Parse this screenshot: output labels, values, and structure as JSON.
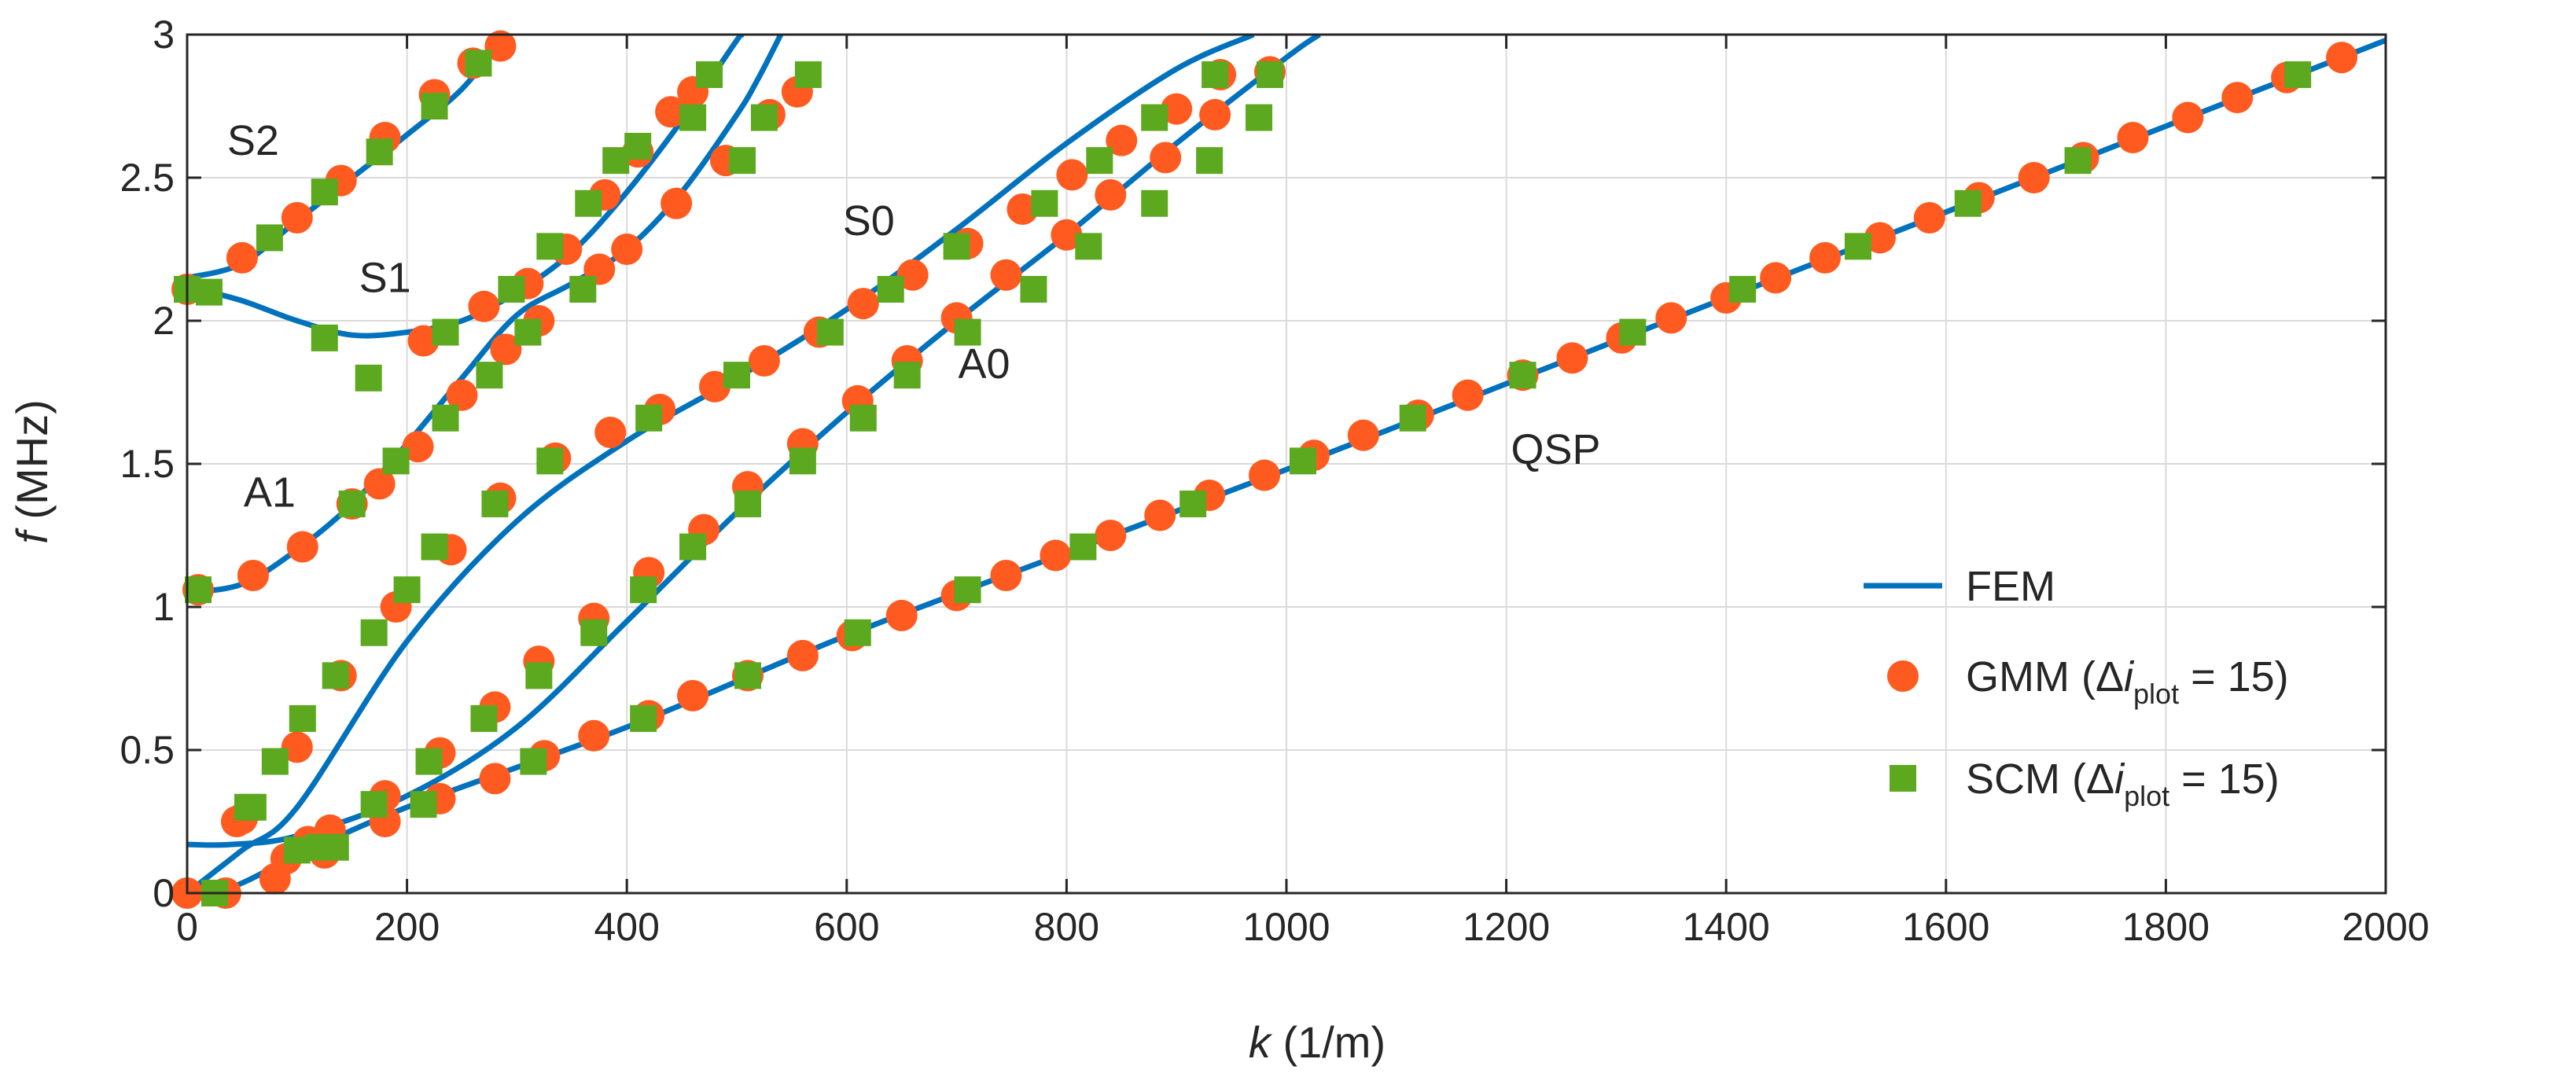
{
  "chart_data": {
    "type": "line",
    "title": "",
    "xlabel": {
      "var": "k",
      "unit": " (1/m)"
    },
    "ylabel": {
      "var": "f",
      "unit": " (MHz)"
    },
    "xlim": [
      0,
      2000
    ],
    "ylim": [
      0,
      3
    ],
    "grid": true,
    "xticks": [
      0,
      200,
      400,
      600,
      800,
      1000,
      1200,
      1400,
      1600,
      1800,
      2000
    ],
    "yticks": [
      0,
      0.5,
      1,
      1.5,
      2,
      2.5,
      3
    ],
    "xtick_labels": [
      "0",
      "200",
      "400",
      "600",
      "800",
      "1000",
      "1200",
      "1400",
      "1600",
      "1800",
      "2000"
    ],
    "ytick_labels": [
      "0",
      "0.5",
      "1",
      "1.5",
      "2",
      "2.5",
      "3"
    ],
    "colors": {
      "fem": "#0072BD",
      "gmm": "#FF5A1F",
      "scm": "#5CA81E",
      "grid": "#DADADA",
      "axis": "#262626"
    },
    "legend": {
      "position": "bottom-right",
      "entries": [
        {
          "key": "fem",
          "label": "FEM"
        },
        {
          "key": "gmm",
          "pre": "GMM (Δ",
          "var": "i",
          "sub": "plot",
          "post": " = 15)"
        },
        {
          "key": "scm",
          "pre": "SCM (Δ",
          "var": "i",
          "sub": "plot",
          "post": " = 15)"
        }
      ]
    },
    "annotations": [
      {
        "text": "S2",
        "x": 60,
        "y": 2.58
      },
      {
        "text": "S1",
        "x": 180,
        "y": 2.1
      },
      {
        "text": "S0",
        "x": 620,
        "y": 2.3
      },
      {
        "text": "A1",
        "x": 75,
        "y": 1.35
      },
      {
        "text": "A0",
        "x": 725,
        "y": 1.8
      },
      {
        "text": "QSP",
        "x": 1245,
        "y": 1.5
      }
    ],
    "series": [
      {
        "name": "QSP",
        "fem": [
          [
            0,
            0
          ],
          [
            40,
            0.02
          ],
          [
            100,
            0.13
          ],
          [
            200,
            0.3
          ],
          [
            400,
            0.58
          ],
          [
            600,
            0.9
          ],
          [
            800,
            1.19
          ],
          [
            1000,
            1.48
          ],
          [
            1200,
            1.78
          ],
          [
            1400,
            2.08
          ],
          [
            1600,
            2.38
          ],
          [
            1800,
            2.68
          ],
          [
            2000,
            2.98
          ]
        ],
        "gmm": [
          [
            0,
            0
          ],
          [
            35,
            0
          ],
          [
            80,
            0.05
          ],
          [
            90,
            0.12
          ],
          [
            125,
            0.14
          ],
          [
            180,
            0.25
          ],
          [
            230,
            0.33
          ],
          [
            280,
            0.4
          ],
          [
            325,
            0.48
          ],
          [
            370,
            0.55
          ],
          [
            420,
            0.62
          ],
          [
            460,
            0.69
          ],
          [
            510,
            0.76
          ],
          [
            560,
            0.83
          ],
          [
            605,
            0.9
          ],
          [
            650,
            0.97
          ],
          [
            700,
            1.04
          ],
          [
            745,
            1.11
          ],
          [
            790,
            1.18
          ],
          [
            840,
            1.25
          ],
          [
            885,
            1.32
          ],
          [
            930,
            1.39
          ],
          [
            980,
            1.46
          ],
          [
            1025,
            1.53
          ],
          [
            1070,
            1.6
          ],
          [
            1120,
            1.67
          ],
          [
            1165,
            1.74
          ],
          [
            1215,
            1.81
          ],
          [
            1260,
            1.87
          ],
          [
            1305,
            1.94
          ],
          [
            1350,
            2.01
          ],
          [
            1400,
            2.08
          ],
          [
            1445,
            2.15
          ],
          [
            1490,
            2.22
          ],
          [
            1540,
            2.29
          ],
          [
            1585,
            2.36
          ],
          [
            1630,
            2.43
          ],
          [
            1680,
            2.5
          ],
          [
            1725,
            2.57
          ],
          [
            1770,
            2.64
          ],
          [
            1820,
            2.71
          ],
          [
            1865,
            2.78
          ],
          [
            1910,
            2.85
          ],
          [
            1960,
            2.92
          ]
        ],
        "scm": [
          [
            25,
            0
          ],
          [
            100,
            0.15
          ],
          [
            135,
            0.16
          ],
          [
            215,
            0.31
          ],
          [
            315,
            0.46
          ],
          [
            415,
            0.61
          ],
          [
            510,
            0.76
          ],
          [
            610,
            0.91
          ],
          [
            710,
            1.06
          ],
          [
            815,
            1.21
          ],
          [
            915,
            1.36
          ],
          [
            1015,
            1.51
          ],
          [
            1115,
            1.66
          ],
          [
            1215,
            1.81
          ],
          [
            1315,
            1.96
          ],
          [
            1415,
            2.11
          ],
          [
            1520,
            2.26
          ],
          [
            1620,
            2.41
          ],
          [
            1720,
            2.56
          ],
          [
            1920,
            2.86
          ]
        ]
      },
      {
        "name": "A0",
        "fem": [
          [
            0,
            0.17
          ],
          [
            40,
            0.17
          ],
          [
            100,
            0.2
          ],
          [
            200,
            0.34
          ],
          [
            300,
            0.58
          ],
          [
            400,
            0.95
          ],
          [
            500,
            1.33
          ],
          [
            600,
            1.68
          ],
          [
            700,
            2.0
          ],
          [
            800,
            2.3
          ],
          [
            900,
            2.62
          ],
          [
            1000,
            2.92
          ],
          [
            1030,
            3.0
          ]
        ],
        "gmm": [
          [
            45,
            0.25
          ],
          [
            110,
            0.18
          ],
          [
            130,
            0.22
          ],
          [
            180,
            0.34
          ],
          [
            230,
            0.49
          ],
          [
            280,
            0.65
          ],
          [
            320,
            0.81
          ],
          [
            370,
            0.96
          ],
          [
            420,
            1.12
          ],
          [
            470,
            1.27
          ],
          [
            510,
            1.42
          ],
          [
            560,
            1.57
          ],
          [
            610,
            1.72
          ],
          [
            655,
            1.86
          ],
          [
            700,
            2.01
          ],
          [
            745,
            2.16
          ],
          [
            800,
            2.3
          ],
          [
            840,
            2.44
          ],
          [
            890,
            2.57
          ],
          [
            935,
            2.72
          ],
          [
            985,
            2.87
          ]
        ],
        "scm": [
          [
            55,
            0.3
          ],
          [
            120,
            0.16
          ],
          [
            170,
            0.31
          ],
          [
            220,
            0.46
          ],
          [
            270,
            0.61
          ],
          [
            320,
            0.76
          ],
          [
            370,
            0.91
          ],
          [
            415,
            1.06
          ],
          [
            460,
            1.21
          ],
          [
            510,
            1.36
          ],
          [
            560,
            1.51
          ],
          [
            615,
            1.66
          ],
          [
            655,
            1.81
          ],
          [
            710,
            1.96
          ],
          [
            770,
            2.11
          ],
          [
            820,
            2.26
          ],
          [
            880,
            2.41
          ],
          [
            930,
            2.56
          ],
          [
            975,
            2.71
          ],
          [
            985,
            2.86
          ]
        ]
      },
      {
        "name": "S0",
        "fem": [
          [
            0,
            0
          ],
          [
            50,
            0.15
          ],
          [
            100,
            0.3
          ],
          [
            200,
            0.88
          ],
          [
            300,
            1.3
          ],
          [
            400,
            1.58
          ],
          [
            500,
            1.8
          ],
          [
            600,
            2.04
          ],
          [
            700,
            2.32
          ],
          [
            800,
            2.62
          ],
          [
            900,
            2.88
          ],
          [
            970,
            3.0
          ]
        ],
        "gmm": [
          [
            50,
            0.26
          ],
          [
            100,
            0.51
          ],
          [
            140,
            0.76
          ],
          [
            190,
            1.0
          ],
          [
            240,
            1.2
          ],
          [
            285,
            1.38
          ],
          [
            335,
            1.52
          ],
          [
            385,
            1.61
          ],
          [
            430,
            1.69
          ],
          [
            480,
            1.77
          ],
          [
            525,
            1.86
          ],
          [
            575,
            1.96
          ],
          [
            615,
            2.06
          ],
          [
            660,
            2.16
          ],
          [
            710,
            2.27
          ],
          [
            760,
            2.39
          ],
          [
            805,
            2.51
          ],
          [
            850,
            2.63
          ],
          [
            900,
            2.74
          ],
          [
            940,
            2.86
          ]
        ],
        "scm": [
          [
            60,
            0.3
          ],
          [
            80,
            0.46
          ],
          [
            105,
            0.61
          ],
          [
            135,
            0.76
          ],
          [
            170,
            0.91
          ],
          [
            200,
            1.06
          ],
          [
            225,
            1.21
          ],
          [
            280,
            1.36
          ],
          [
            330,
            1.51
          ],
          [
            420,
            1.66
          ],
          [
            500,
            1.81
          ],
          [
            585,
            1.96
          ],
          [
            640,
            2.11
          ],
          [
            700,
            2.26
          ],
          [
            780,
            2.41
          ],
          [
            830,
            2.56
          ],
          [
            880,
            2.71
          ],
          [
            935,
            2.86
          ]
        ]
      },
      {
        "name": "A1",
        "fem": [
          [
            0,
            1.05
          ],
          [
            50,
            1.08
          ],
          [
            100,
            1.2
          ],
          [
            150,
            1.36
          ],
          [
            200,
            1.57
          ],
          [
            250,
            1.8
          ],
          [
            300,
            2.02
          ],
          [
            350,
            2.13
          ],
          [
            400,
            2.25
          ],
          [
            450,
            2.45
          ],
          [
            500,
            2.72
          ],
          [
            520,
            2.85
          ],
          [
            540,
            3.0
          ]
        ],
        "gmm": [
          [
            10,
            1.06
          ],
          [
            60,
            1.11
          ],
          [
            105,
            1.21
          ],
          [
            150,
            1.36
          ],
          [
            175,
            1.43
          ],
          [
            210,
            1.56
          ],
          [
            250,
            1.74
          ],
          [
            290,
            1.9
          ],
          [
            320,
            2.0
          ],
          [
            375,
            2.18
          ],
          [
            400,
            2.25
          ],
          [
            445,
            2.41
          ],
          [
            490,
            2.56
          ],
          [
            530,
            2.72
          ],
          [
            555,
            2.8
          ]
        ],
        "scm": [
          [
            10,
            1.06
          ],
          [
            150,
            1.36
          ],
          [
            190,
            1.51
          ],
          [
            235,
            1.66
          ],
          [
            275,
            1.81
          ],
          [
            310,
            1.96
          ],
          [
            360,
            2.11
          ],
          [
            505,
            2.56
          ],
          [
            525,
            2.71
          ],
          [
            565,
            2.86
          ]
        ]
      },
      {
        "name": "S1",
        "fem": [
          [
            0,
            2.12
          ],
          [
            50,
            2.07
          ],
          [
            100,
            2.0
          ],
          [
            150,
            1.95
          ],
          [
            200,
            1.96
          ],
          [
            250,
            2.0
          ],
          [
            300,
            2.1
          ],
          [
            350,
            2.24
          ],
          [
            400,
            2.45
          ],
          [
            450,
            2.7
          ],
          [
            500,
            2.98
          ],
          [
            505,
            3.0
          ]
        ],
        "gmm": [
          [
            215,
            1.93
          ],
          [
            270,
            2.05
          ],
          [
            310,
            2.13
          ],
          [
            345,
            2.25
          ],
          [
            380,
            2.44
          ],
          [
            410,
            2.59
          ],
          [
            440,
            2.73
          ],
          [
            460,
            2.8
          ]
        ],
        "scm": [
          [
            0,
            2.11
          ],
          [
            20,
            2.1
          ],
          [
            125,
            1.94
          ],
          [
            165,
            1.8
          ],
          [
            235,
            1.96
          ],
          [
            295,
            2.11
          ],
          [
            330,
            2.26
          ],
          [
            365,
            2.41
          ],
          [
            390,
            2.56
          ],
          [
            410,
            2.61
          ],
          [
            460,
            2.71
          ],
          [
            475,
            2.86
          ]
        ]
      },
      {
        "name": "S2",
        "fem": [
          [
            0,
            2.15
          ],
          [
            50,
            2.2
          ],
          [
            100,
            2.35
          ],
          [
            150,
            2.5
          ],
          [
            200,
            2.65
          ],
          [
            250,
            2.81
          ],
          [
            285,
            2.98
          ],
          [
            290,
            3.0
          ]
        ],
        "gmm": [
          [
            0,
            2.11
          ],
          [
            50,
            2.22
          ],
          [
            100,
            2.36
          ],
          [
            140,
            2.49
          ],
          [
            180,
            2.64
          ],
          [
            225,
            2.79
          ],
          [
            260,
            2.9
          ],
          [
            285,
            2.96
          ]
        ],
        "scm": [
          [
            75,
            2.29
          ],
          [
            125,
            2.45
          ],
          [
            175,
            2.59
          ],
          [
            225,
            2.75
          ],
          [
            265,
            2.9
          ]
        ]
      }
    ]
  }
}
